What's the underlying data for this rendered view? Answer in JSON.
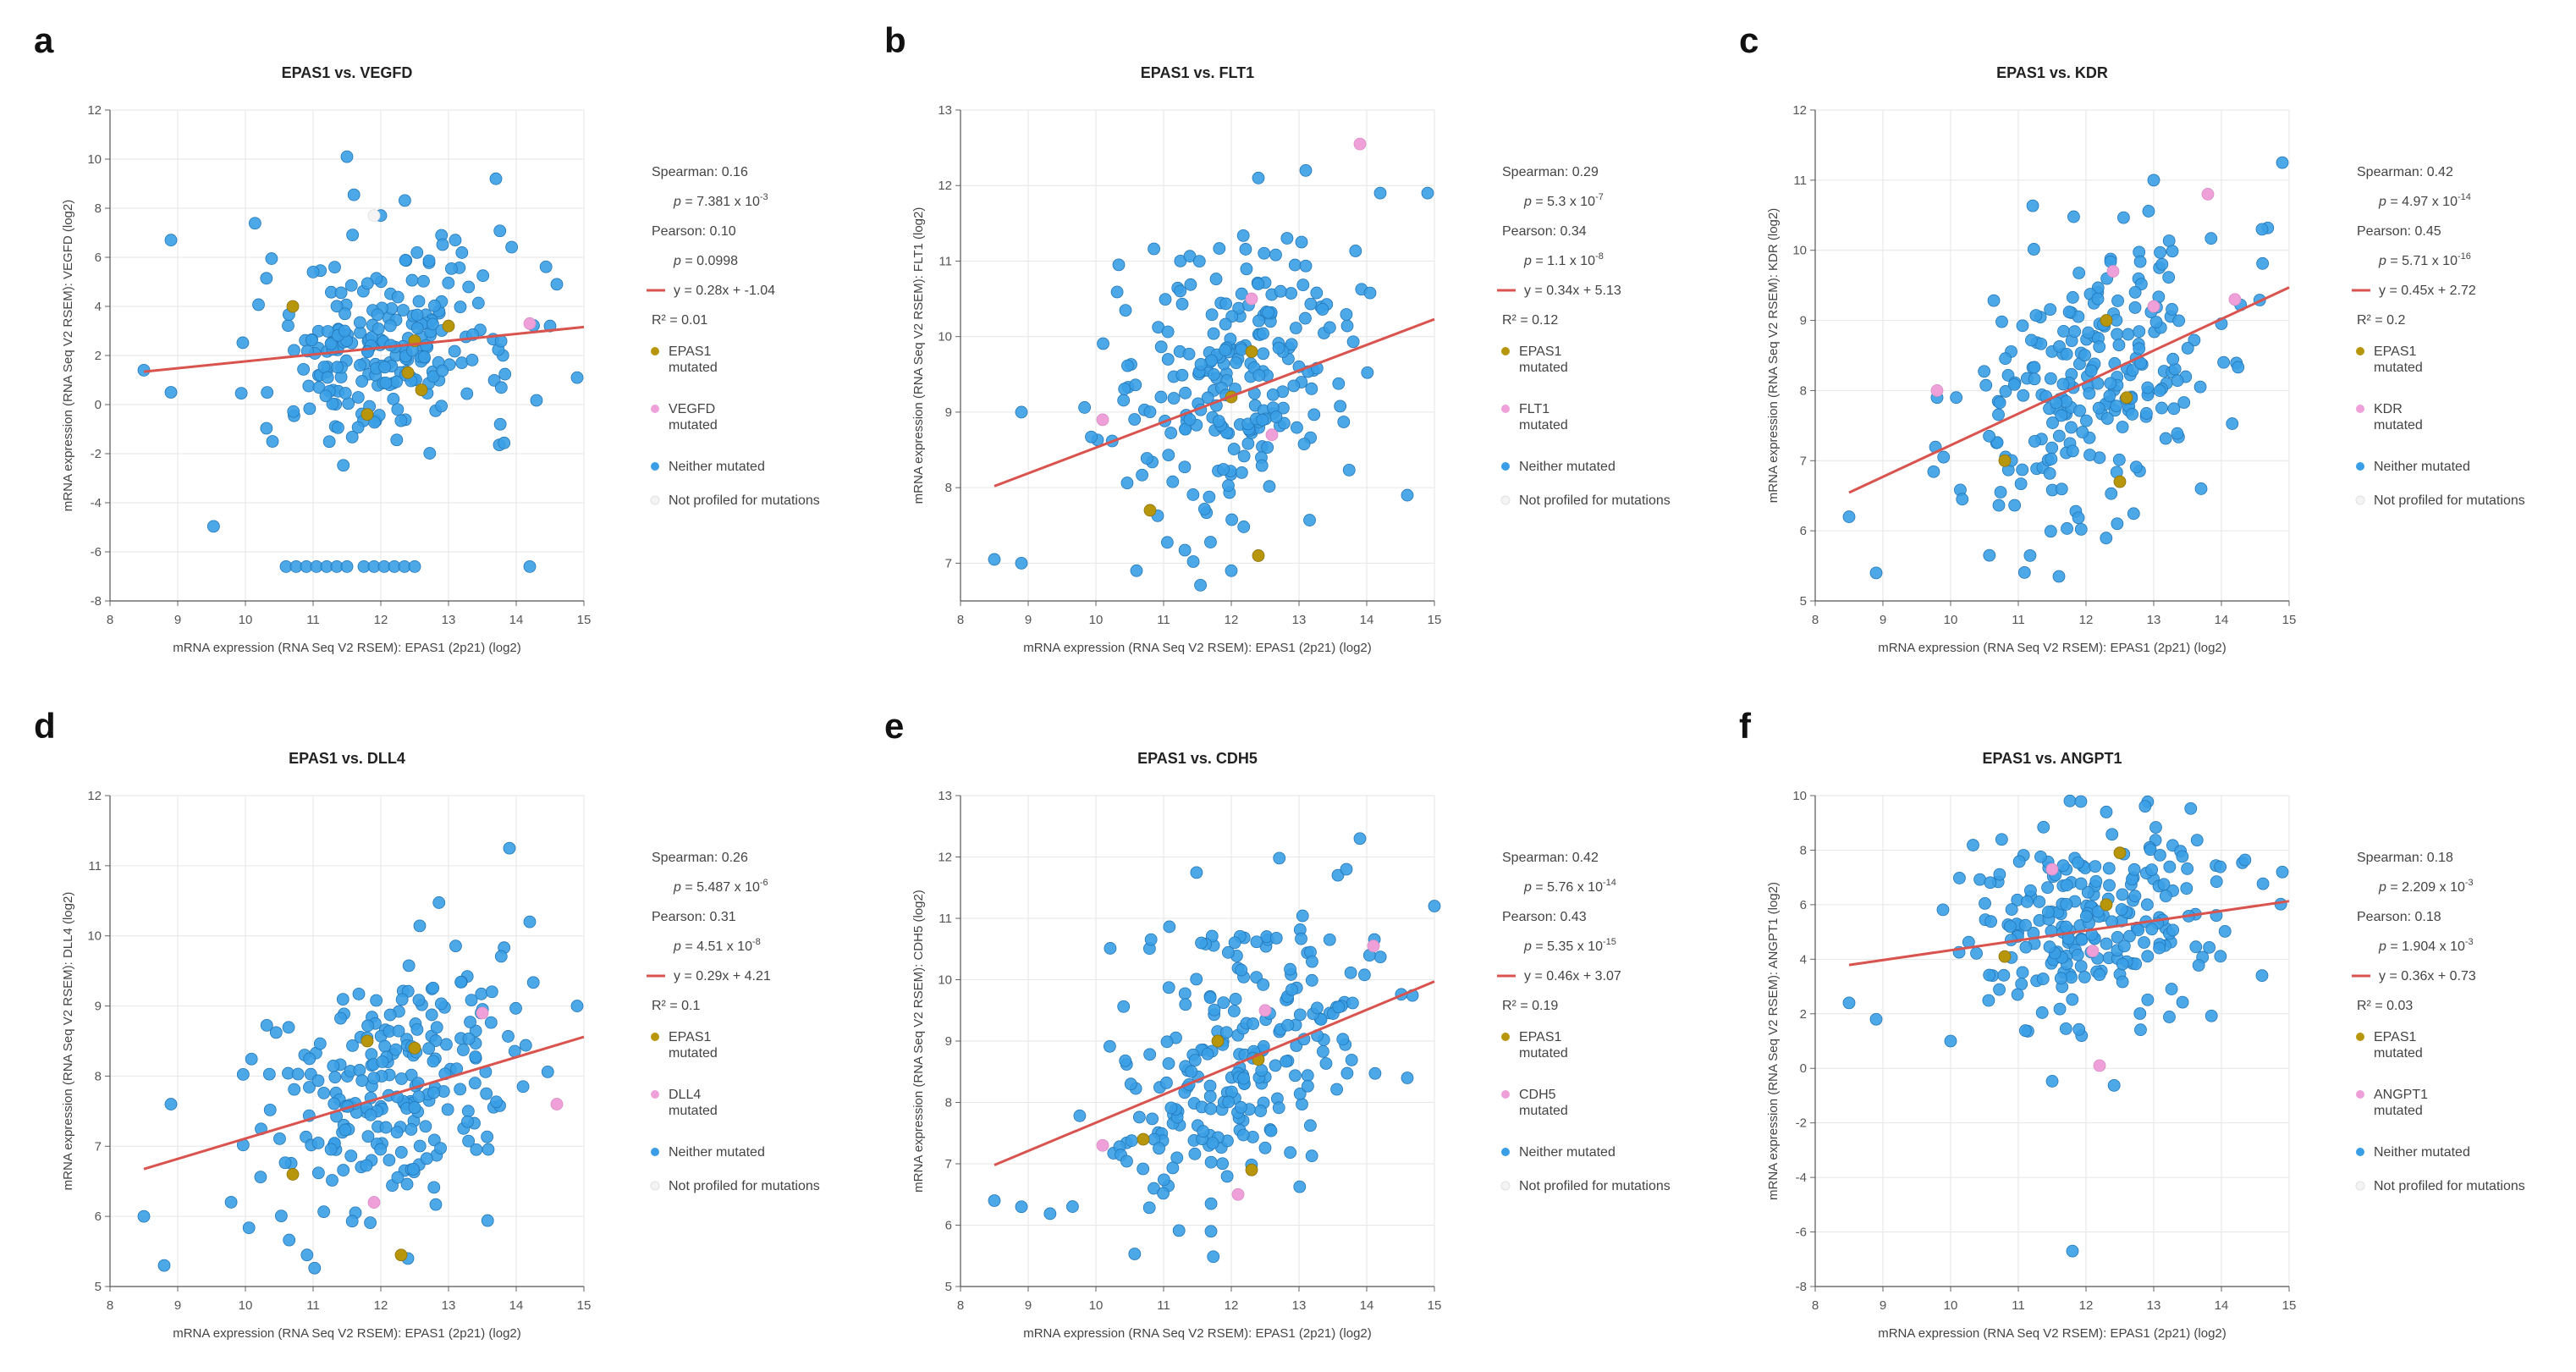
{
  "figure": {
    "x_axis_label": "mRNA expression (RNA Seq V2 RSEM): EPAS1 (2p21) (log2)",
    "legend_labels": {
      "epas1": [
        "EPAS1",
        "mutated"
      ],
      "neither": "Neither mutated",
      "not_profiled": "Not profiled for mutations"
    },
    "colors": {
      "neither": "#3a9ee6",
      "epas1": "#b8960c",
      "partner": "#f0a0d8",
      "not_profiled": "#f4f4f4",
      "fit_line": "#d9534f",
      "grid": "#e6e6e6"
    }
  },
  "chart_data": [
    {
      "type": "scatter",
      "letter": "a",
      "title": "EPAS1 vs. VEGFD",
      "ylabel": "mRNA expression (RNA Seq V2 RSEM): VEGFD (log2)",
      "xlim": [
        8,
        15
      ],
      "xticks": [
        8,
        9,
        10,
        11,
        12,
        13,
        14,
        15
      ],
      "ylim": [
        -8,
        12
      ],
      "yticks": [
        -8,
        -6,
        -4,
        -2,
        0,
        2,
        4,
        6,
        8,
        10,
        12
      ],
      "fit": {
        "slope": 0.28,
        "intercept": -1.04,
        "x_range": [
          8.5,
          15
        ]
      },
      "stats": [
        {
          "label": "Spearman:",
          "text": "0.16"
        },
        {
          "label": "p =",
          "text": "7.381 x 10",
          "exp": "-3"
        },
        {
          "label": "Pearson:",
          "text": "0.10"
        },
        {
          "label": "p =",
          "text": "0.0998"
        },
        {
          "label": "y =",
          "text": "0.28x + -1.04"
        },
        {
          "label": "R² =",
          "text": "0.01"
        }
      ],
      "partner_legend": [
        "VEGFD",
        "mutated"
      ],
      "has_not_profiled": true,
      "zero_cluster": {
        "y": -6.6,
        "x": [
          10.6,
          10.75,
          10.9,
          11.05,
          11.2,
          11.35,
          11.5,
          11.75,
          11.9,
          12.05,
          12.2,
          12.35,
          12.5,
          14.2
        ]
      },
      "center": [
        12.1,
        2.4
      ],
      "spread": [
        0.95,
        1.9
      ],
      "outliers": [
        [
          11.5,
          10.1
        ],
        [
          13.7,
          9.2
        ],
        [
          8.9,
          6.7
        ],
        [
          8.5,
          1.4
        ],
        [
          8.9,
          0.5
        ],
        [
          12.0,
          7.7
        ],
        [
          10.4,
          -1.5
        ],
        [
          14.6,
          4.9
        ],
        [
          14.9,
          1.1
        ],
        [
          11.0,
          5.4
        ],
        [
          13.1,
          6.7
        ],
        [
          14.5,
          3.2
        ]
      ],
      "epas1_points": [
        [
          10.7,
          4.0
        ],
        [
          11.8,
          -0.4
        ],
        [
          12.4,
          1.3
        ],
        [
          12.6,
          0.6
        ],
        [
          12.5,
          2.6
        ],
        [
          13.0,
          3.2
        ]
      ],
      "partner_points": [
        [
          14.2,
          3.3
        ]
      ]
    },
    {
      "type": "scatter",
      "letter": "b",
      "title": "EPAS1 vs. FLT1",
      "ylabel": "mRNA expression (RNA Seq V2 RSEM): FLT1 (log2)",
      "xlim": [
        8,
        15
      ],
      "xticks": [
        8,
        9,
        10,
        11,
        12,
        13,
        14,
        15
      ],
      "ylim": [
        6.5,
        13
      ],
      "yticks": [
        7,
        8,
        9,
        10,
        11,
        12,
        13
      ],
      "fit": {
        "slope": 0.34,
        "intercept": 5.13,
        "x_range": [
          8.5,
          15
        ]
      },
      "stats": [
        {
          "label": "Spearman:",
          "text": "0.29"
        },
        {
          "label": "p =",
          "text": "5.3 x 10",
          "exp": "-7"
        },
        {
          "label": "Pearson:",
          "text": "0.34"
        },
        {
          "label": "p =",
          "text": "1.1 x 10",
          "exp": "-8"
        },
        {
          "label": "y =",
          "text": "0.34x + 5.13"
        },
        {
          "label": "R² =",
          "text": "0.12"
        }
      ],
      "partner_legend": [
        "FLT1",
        "mutated"
      ],
      "has_not_profiled": true,
      "center": [
        12.1,
        9.4
      ],
      "spread": [
        0.95,
        0.95
      ],
      "outliers": [
        [
          8.5,
          7.05
        ],
        [
          8.9,
          7.0
        ],
        [
          8.9,
          9.0
        ],
        [
          14.9,
          11.9
        ],
        [
          14.6,
          7.9
        ],
        [
          14.2,
          11.9
        ],
        [
          10.6,
          6.9
        ],
        [
          12.4,
          12.1
        ],
        [
          13.1,
          12.2
        ],
        [
          12.0,
          6.9
        ]
      ],
      "epas1_points": [
        [
          10.8,
          7.7
        ],
        [
          12.0,
          9.2
        ],
        [
          12.3,
          9.8
        ],
        [
          12.4,
          7.1
        ]
      ],
      "partner_points": [
        [
          10.1,
          8.9
        ],
        [
          12.6,
          8.7
        ],
        [
          13.9,
          12.55
        ],
        [
          12.3,
          10.5
        ]
      ]
    },
    {
      "type": "scatter",
      "letter": "c",
      "title": "EPAS1 vs. KDR",
      "ylabel": "mRNA expression (RNA Seq V2 RSEM): KDR (log2)",
      "xlim": [
        8,
        15
      ],
      "xticks": [
        8,
        9,
        10,
        11,
        12,
        13,
        14,
        15
      ],
      "ylim": [
        5,
        12
      ],
      "yticks": [
        5,
        6,
        7,
        8,
        9,
        10,
        11,
        12
      ],
      "fit": {
        "slope": 0.45,
        "intercept": 2.72,
        "x_range": [
          8.5,
          15
        ]
      },
      "stats": [
        {
          "label": "Spearman:",
          "text": "0.42"
        },
        {
          "label": "p =",
          "text": "4.97 x 10",
          "exp": "-14"
        },
        {
          "label": "Pearson:",
          "text": "0.45"
        },
        {
          "label": "p =",
          "text": "5.71 x 10",
          "exp": "-16"
        },
        {
          "label": "y =",
          "text": "0.45x + 2.72"
        },
        {
          "label": "R² =",
          "text": "0.2"
        }
      ],
      "partner_legend": [
        "KDR",
        "mutated"
      ],
      "has_not_profiled": true,
      "center": [
        12.1,
        8.2
      ],
      "spread": [
        0.95,
        1.0
      ],
      "outliers": [
        [
          14.9,
          11.25
        ],
        [
          8.5,
          6.2
        ],
        [
          8.9,
          5.4
        ],
        [
          9.8,
          7.9
        ],
        [
          11.6,
          5.35
        ],
        [
          13.0,
          11.0
        ],
        [
          13.7,
          6.6
        ],
        [
          14.6,
          10.3
        ]
      ],
      "epas1_points": [
        [
          10.8,
          7.0
        ],
        [
          12.3,
          9.0
        ],
        [
          12.5,
          6.7
        ],
        [
          12.6,
          7.9
        ]
      ],
      "partner_points": [
        [
          9.8,
          8.0
        ],
        [
          12.4,
          9.7
        ],
        [
          13.0,
          9.2
        ],
        [
          13.8,
          10.8
        ],
        [
          14.2,
          9.3
        ]
      ]
    },
    {
      "type": "scatter",
      "letter": "d",
      "title": "EPAS1 vs. DLL4",
      "ylabel": "mRNA expression (RNA Seq V2 RSEM): DLL4 (log2)",
      "xlim": [
        8,
        15
      ],
      "xticks": [
        8,
        9,
        10,
        11,
        12,
        13,
        14,
        15
      ],
      "ylim": [
        5,
        12
      ],
      "yticks": [
        5,
        6,
        7,
        8,
        9,
        10,
        11,
        12
      ],
      "fit": {
        "slope": 0.29,
        "intercept": 4.21,
        "x_range": [
          8.5,
          15
        ]
      },
      "stats": [
        {
          "label": "Spearman:",
          "text": "0.26"
        },
        {
          "label": "p =",
          "text": "5.487 x 10",
          "exp": "-6"
        },
        {
          "label": "Pearson:",
          "text": "0.31"
        },
        {
          "label": "p =",
          "text": "4.51 x 10",
          "exp": "-8"
        },
        {
          "label": "y =",
          "text": "0.29x + 4.21"
        },
        {
          "label": "R² =",
          "text": "0.1"
        }
      ],
      "partner_legend": [
        "DLL4",
        "mutated"
      ],
      "has_not_profiled": true,
      "center": [
        12.1,
        7.8
      ],
      "spread": [
        0.95,
        0.85
      ],
      "outliers": [
        [
          13.9,
          11.25
        ],
        [
          8.5,
          6.0
        ],
        [
          8.8,
          5.3
        ],
        [
          14.2,
          10.2
        ],
        [
          12.4,
          5.4
        ],
        [
          8.9,
          7.6
        ],
        [
          14.9,
          9.0
        ]
      ],
      "epas1_points": [
        [
          10.7,
          6.6
        ],
        [
          11.8,
          8.5
        ],
        [
          12.3,
          5.45
        ],
        [
          12.5,
          8.4
        ]
      ],
      "partner_points": [
        [
          11.9,
          6.2
        ],
        [
          13.5,
          8.9
        ],
        [
          14.6,
          7.6
        ]
      ]
    },
    {
      "type": "scatter",
      "letter": "e",
      "title": "EPAS1 vs. CDH5",
      "ylabel": "mRNA expression (RNA Seq V2 RSEM): CDH5 (log2)",
      "xlim": [
        8,
        15
      ],
      "xticks": [
        8,
        9,
        10,
        11,
        12,
        13,
        14,
        15
      ],
      "ylim": [
        5,
        13
      ],
      "yticks": [
        5,
        6,
        7,
        8,
        9,
        10,
        11,
        12,
        13
      ],
      "fit": {
        "slope": 0.46,
        "intercept": 3.07,
        "x_range": [
          8.5,
          15
        ]
      },
      "stats": [
        {
          "label": "Spearman:",
          "text": "0.42"
        },
        {
          "label": "p =",
          "text": "5.76 x 10",
          "exp": "-14"
        },
        {
          "label": "Pearson:",
          "text": "0.43"
        },
        {
          "label": "p =",
          "text": "5.35 x 10",
          "exp": "-15"
        },
        {
          "label": "y =",
          "text": "0.46x + 3.07"
        },
        {
          "label": "R² =",
          "text": "0.19"
        }
      ],
      "partner_legend": [
        "CDH5",
        "mutated"
      ],
      "has_not_profiled": true,
      "center": [
        12.1,
        8.7
      ],
      "spread": [
        0.95,
        1.1
      ],
      "outliers": [
        [
          13.9,
          12.3
        ],
        [
          8.5,
          6.4
        ],
        [
          8.9,
          6.3
        ],
        [
          15.0,
          11.2
        ],
        [
          14.6,
          8.4
        ],
        [
          11.7,
          5.9
        ],
        [
          13.7,
          11.8
        ]
      ],
      "epas1_points": [
        [
          10.7,
          7.4
        ],
        [
          11.8,
          9.0
        ],
        [
          12.3,
          6.9
        ],
        [
          12.4,
          8.7
        ]
      ],
      "partner_points": [
        [
          10.1,
          7.3
        ],
        [
          12.1,
          6.5
        ],
        [
          14.1,
          10.55
        ],
        [
          12.5,
          9.5
        ]
      ]
    },
    {
      "type": "scatter",
      "letter": "f",
      "title": "EPAS1 vs. ANGPT1",
      "ylabel": "mRNA expression (RNA Seq V2 RSEM): ANGPT1 (log2)",
      "xlim": [
        8,
        15
      ],
      "xticks": [
        8,
        9,
        10,
        11,
        12,
        13,
        14,
        15
      ],
      "ylim": [
        -8,
        10
      ],
      "yticks": [
        -8,
        -6,
        -4,
        -2,
        0,
        2,
        4,
        6,
        8,
        10
      ],
      "fit": {
        "slope": 0.36,
        "intercept": 0.73,
        "x_range": [
          8.5,
          15
        ]
      },
      "stats": [
        {
          "label": "Spearman:",
          "text": "0.18"
        },
        {
          "label": "p =",
          "text": "2.209 x 10",
          "exp": "-3"
        },
        {
          "label": "Pearson:",
          "text": "0.18"
        },
        {
          "label": "p =",
          "text": "1.904 x 10",
          "exp": "-3"
        },
        {
          "label": "y =",
          "text": "0.36x + 0.73"
        },
        {
          "label": "R² =",
          "text": "0.03"
        }
      ],
      "partner_legend": [
        "ANGPT1",
        "mutated"
      ],
      "has_not_profiled": true,
      "center": [
        12.1,
        5.6
      ],
      "spread": [
        0.95,
        2.0
      ],
      "outliers": [
        [
          11.8,
          -6.7
        ],
        [
          8.5,
          2.4
        ],
        [
          8.9,
          1.8
        ],
        [
          14.9,
          7.2
        ],
        [
          12.3,
          9.4
        ],
        [
          10.0,
          1.0
        ],
        [
          14.6,
          3.4
        ]
      ],
      "epas1_points": [
        [
          10.8,
          4.1
        ],
        [
          12.3,
          6.0
        ],
        [
          12.5,
          7.9
        ]
      ],
      "partner_points": [
        [
          11.5,
          7.3
        ],
        [
          12.2,
          0.1
        ],
        [
          12.1,
          4.3
        ]
      ]
    }
  ]
}
